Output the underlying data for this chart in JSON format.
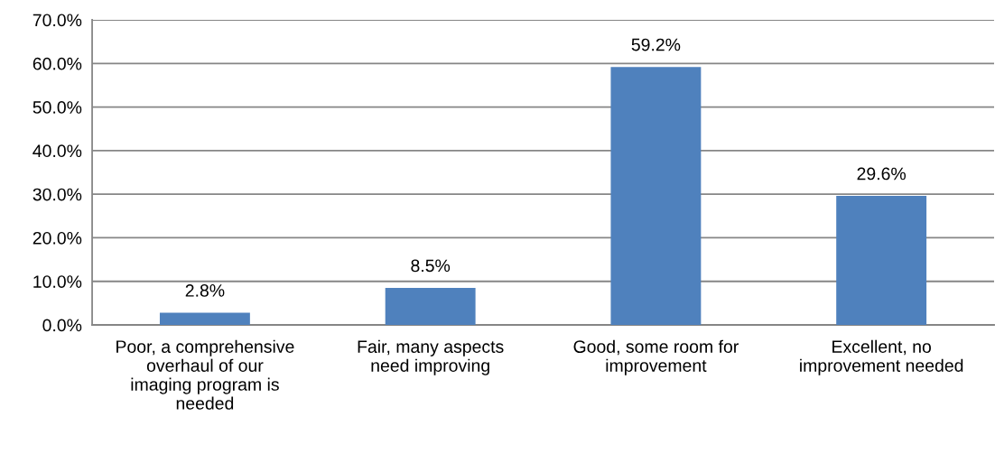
{
  "chart_data": {
    "type": "bar",
    "categories": [
      "Poor, a comprehensive\noverhaul of our\nimaging program is\nneeded",
      "Fair, many aspects\nneed improving",
      "Good, some room for\nimprovement",
      "Excellent, no\nimprovement needed"
    ],
    "values": [
      2.8,
      8.5,
      59.2,
      29.6
    ],
    "color": "#4f81bd",
    "value_labels": [
      "2.8%",
      "8.5%",
      "59.2%",
      "29.6%"
    ],
    "ylim": [
      0,
      70
    ],
    "yticks": [
      {
        "value": 0,
        "label": "0.0%"
      },
      {
        "value": 10,
        "label": "10.0%"
      },
      {
        "value": 20,
        "label": "20.0%"
      },
      {
        "value": 30,
        "label": "30.0%"
      },
      {
        "value": 40,
        "label": "40.0%"
      },
      {
        "value": 50,
        "label": "50.0%"
      },
      {
        "value": 60,
        "label": "60.0%"
      },
      {
        "value": 70,
        "label": "70.0%"
      }
    ],
    "grid": "y",
    "legend": false
  }
}
